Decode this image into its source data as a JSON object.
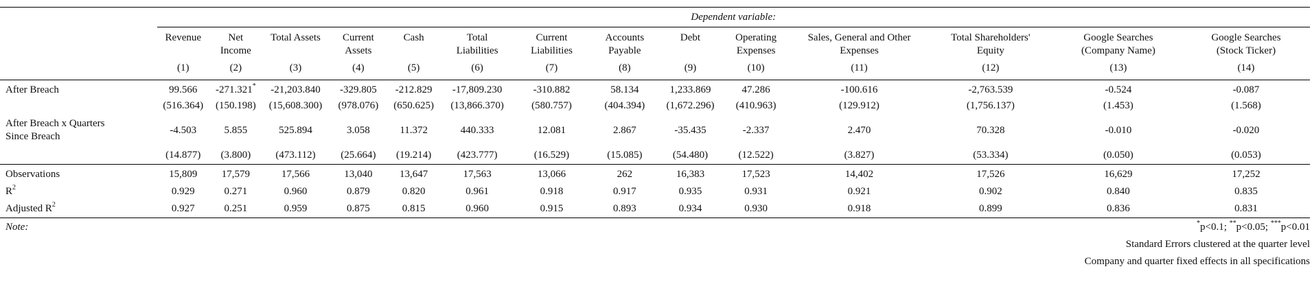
{
  "dependent_variable_label": "Dependent variable:",
  "columns": [
    {
      "name_line1": "Revenue",
      "name_line2": "",
      "num": "(1)"
    },
    {
      "name_line1": "Net",
      "name_line2": "Income",
      "num": "(2)"
    },
    {
      "name_line1": "Total Assets",
      "name_line2": "",
      "num": "(3)"
    },
    {
      "name_line1": "Current",
      "name_line2": "Assets",
      "num": "(4)"
    },
    {
      "name_line1": "Cash",
      "name_line2": "",
      "num": "(5)"
    },
    {
      "name_line1": "Total",
      "name_line2": "Liabilities",
      "num": "(6)"
    },
    {
      "name_line1": "Current",
      "name_line2": "Liabilities",
      "num": "(7)"
    },
    {
      "name_line1": "Accounts",
      "name_line2": "Payable",
      "num": "(8)"
    },
    {
      "name_line1": "Debt",
      "name_line2": "",
      "num": "(9)"
    },
    {
      "name_line1": "Operating",
      "name_line2": "Expenses",
      "num": "(10)"
    },
    {
      "name_line1": "Sales, General and Other",
      "name_line2": "Expenses",
      "num": "(11)"
    },
    {
      "name_line1": "Total Shareholders'",
      "name_line2": "Equity",
      "num": "(12)"
    },
    {
      "name_line1": "Google Searches",
      "name_line2": "(Company Name)",
      "num": "(13)"
    },
    {
      "name_line1": "Google Searches",
      "name_line2": "(Stock Ticker)",
      "num": "(14)"
    }
  ],
  "rows": {
    "after_breach": {
      "label": "After Breach",
      "coef": [
        "99.566",
        "-271.321",
        "-21,203.840",
        "-329.805",
        "-212.829",
        "-17,809.230",
        "-310.882",
        "58.134",
        "1,233.869",
        "47.286",
        "-100.616",
        "-2,763.539",
        "-0.524",
        "-0.087"
      ],
      "stars": [
        "",
        "*",
        "",
        "",
        "",
        "",
        "",
        "",
        "",
        "",
        "",
        "",
        "",
        ""
      ],
      "se": [
        "(516.364)",
        "(150.198)",
        "(15,608.300)",
        "(978.076)",
        "(650.625)",
        "(13,866.370)",
        "(580.757)",
        "(404.394)",
        "(1,672.296)",
        "(410.963)",
        "(129.912)",
        "(1,756.137)",
        "(1.453)",
        "(1.568)"
      ]
    },
    "after_breach_x_quarters": {
      "label_line1": "After Breach x Quarters",
      "label_line2": "Since Breach",
      "coef": [
        "-4.503",
        "5.855",
        "525.894",
        "3.058",
        "11.372",
        "440.333",
        "12.081",
        "2.867",
        "-35.435",
        "-2.337",
        "2.470",
        "70.328",
        "-0.010",
        "-0.020"
      ],
      "se": [
        "(14.877)",
        "(3.800)",
        "(473.112)",
        "(25.664)",
        "(19.214)",
        "(423.777)",
        "(16.529)",
        "(15.085)",
        "(54.480)",
        "(12.522)",
        "(3.827)",
        "(53.334)",
        "(0.050)",
        "(0.053)"
      ]
    },
    "observations": {
      "label": "Observations",
      "values": [
        "15,809",
        "17,579",
        "17,566",
        "13,040",
        "13,647",
        "17,563",
        "13,066",
        "262",
        "16,383",
        "17,523",
        "14,402",
        "17,526",
        "16,629",
        "17,252"
      ]
    },
    "r2": {
      "label": "R",
      "label_sup": "2",
      "values": [
        "0.929",
        "0.271",
        "0.960",
        "0.879",
        "0.820",
        "0.961",
        "0.918",
        "0.917",
        "0.935",
        "0.931",
        "0.921",
        "0.902",
        "0.840",
        "0.835"
      ]
    },
    "adj_r2": {
      "label": "Adjusted R",
      "label_sup": "2",
      "values": [
        "0.927",
        "0.251",
        "0.959",
        "0.875",
        "0.815",
        "0.960",
        "0.915",
        "0.893",
        "0.934",
        "0.930",
        "0.918",
        "0.899",
        "0.836",
        "0.831"
      ]
    }
  },
  "note": {
    "label": "Note:",
    "sig_star1": "*",
    "sig_text1": "p<0.1; ",
    "sig_star2": "**",
    "sig_text2": "p<0.05; ",
    "sig_star3": "***",
    "sig_text3": "p<0.01",
    "line2": "Standard Errors clustered at the quarter level",
    "line3": "Company and quarter fixed effects in all specifications"
  }
}
